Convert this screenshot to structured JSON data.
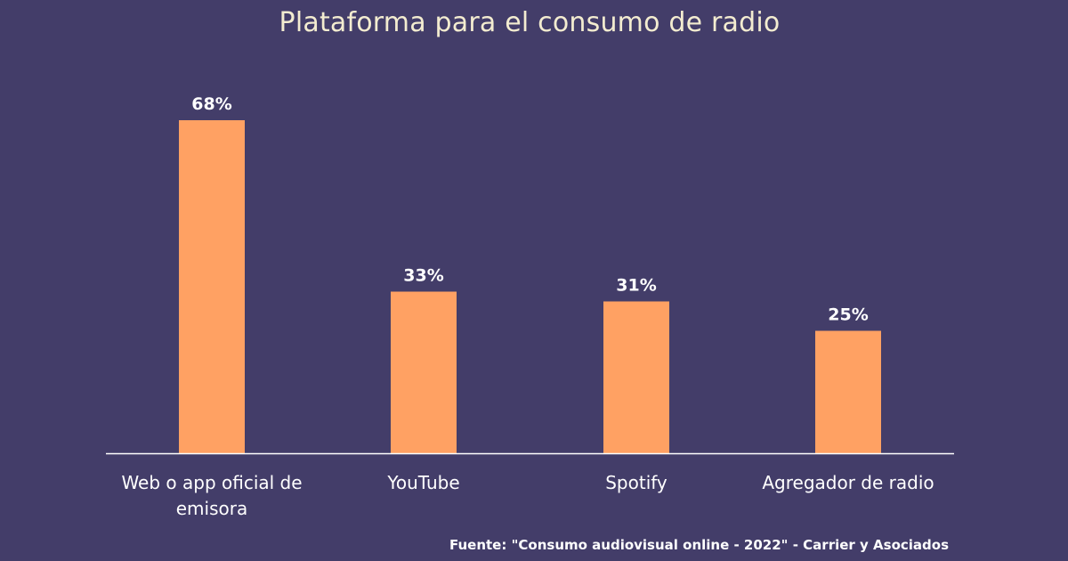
{
  "chart_data": {
    "type": "bar",
    "title": "Plataforma para el consumo de radio",
    "categories": [
      "Web o app oficial de emisora",
      "YouTube",
      "Spotify",
      "Agregador de radio"
    ],
    "category_lines": [
      [
        "Web o app oficial de",
        "emisora"
      ],
      [
        "YouTube"
      ],
      [
        "Spotify"
      ],
      [
        "Agregador de radio"
      ]
    ],
    "values": [
      68,
      33,
      31,
      25
    ],
    "data_labels": [
      "68%",
      "33%",
      "31%",
      "25%"
    ],
    "ylim": [
      0,
      68
    ],
    "grid": false,
    "legend": "none",
    "bar_color": "#ffa163",
    "axis_color": "#ffffff"
  },
  "source": "Fuente: \"Consumo audiovisual online - 2022\" - Carrier y Asociados",
  "colors": {
    "background": "#433d69",
    "title": "#f3ecd0",
    "text": "#ffffff"
  }
}
